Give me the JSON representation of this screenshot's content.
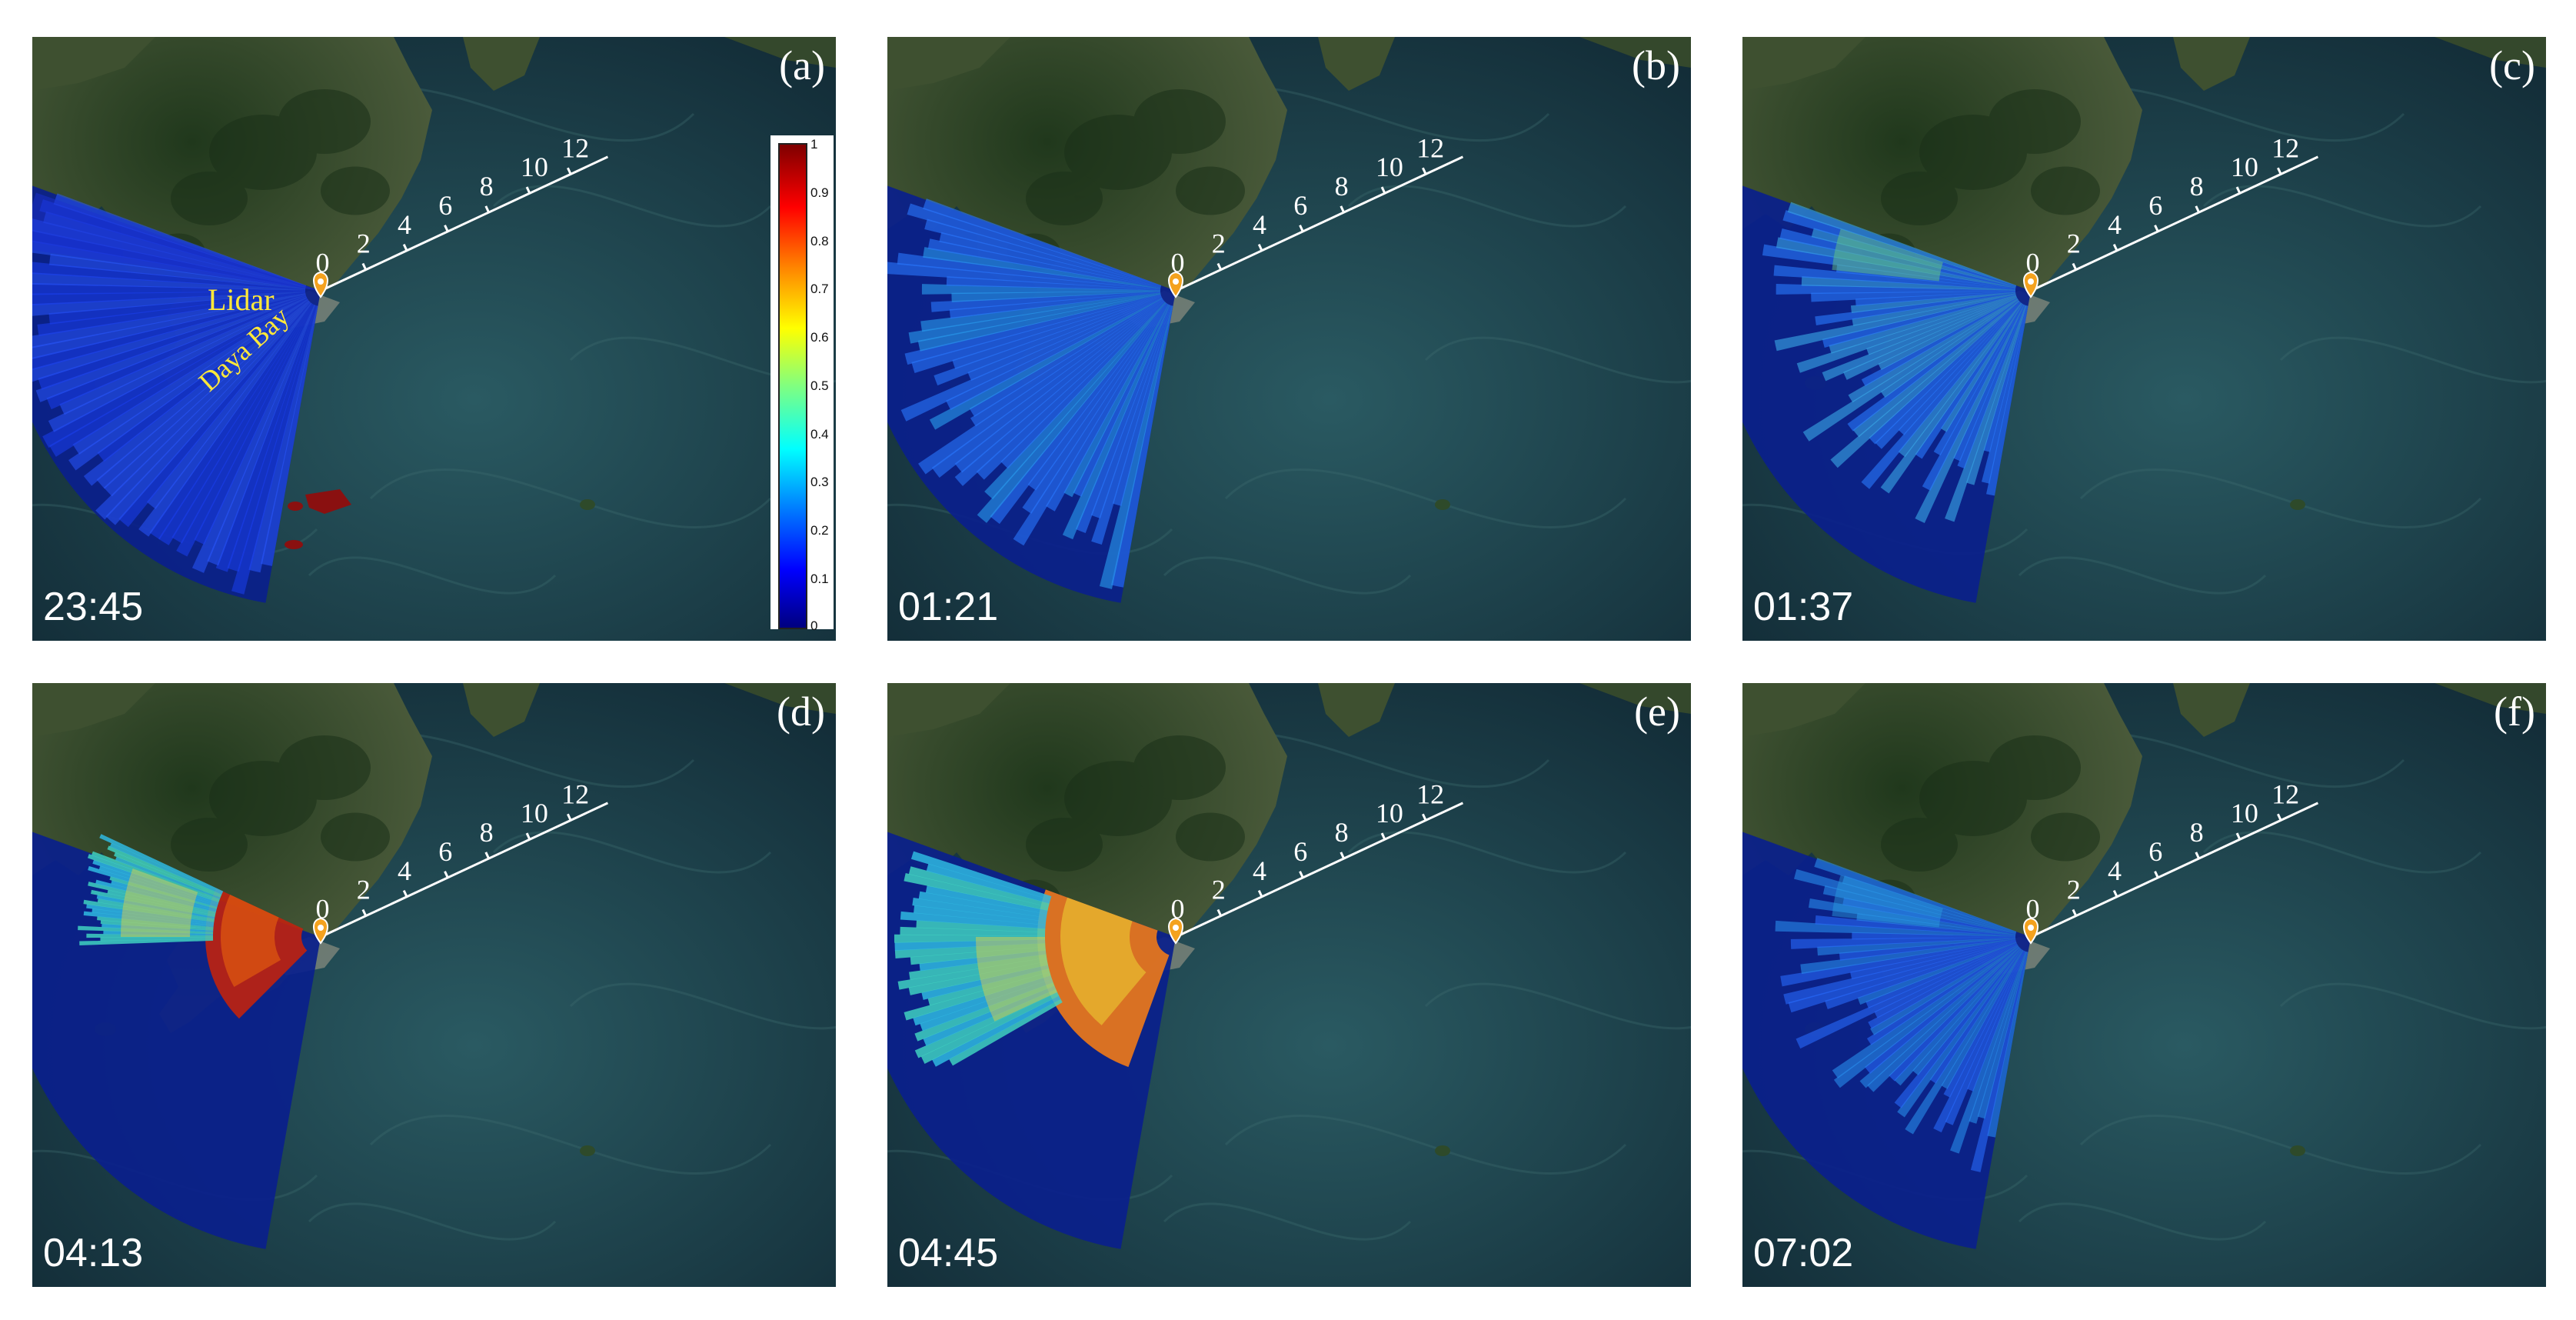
{
  "panels": [
    {
      "label": "(a)",
      "time": "23:45",
      "state": "a"
    },
    {
      "label": "(b)",
      "time": "01:21",
      "state": "b"
    },
    {
      "label": "(c)",
      "time": "01:37",
      "state": "c"
    },
    {
      "label": "(d)",
      "time": "04:13",
      "state": "d"
    },
    {
      "label": "(e)",
      "time": "04:45",
      "state": "e"
    },
    {
      "label": "(f)",
      "time": "07:02",
      "state": "f"
    }
  ],
  "range_ticks": [
    "0",
    "2",
    "4",
    "6",
    "8",
    "10",
    "12"
  ],
  "place_names": {
    "lidar": "Lidar",
    "bay": "Daya Bay"
  },
  "colorbar": {
    "ticks": [
      "1",
      "0.9",
      "0.8",
      "0.7",
      "0.6",
      "0.5",
      "0.4",
      "0.3",
      "0.2",
      "0.1",
      "0"
    ],
    "colormap": [
      "#00007f",
      "#0000ff",
      "#0080ff",
      "#00ffff",
      "#80ff80",
      "#ffff00",
      "#ff8000",
      "#ff0000",
      "#7f0000"
    ]
  },
  "colors": {
    "sea": "#1c3c46",
    "land": "#2d4a2a",
    "scan": "#0a1f8c",
    "label_yellow": "#ffe83a"
  }
}
